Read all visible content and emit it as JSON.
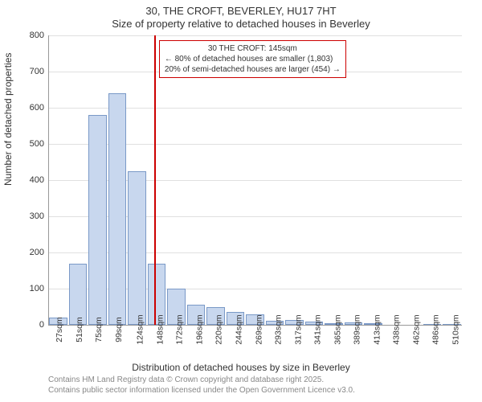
{
  "title_main": "30, THE CROFT, BEVERLEY, HU17 7HT",
  "title_sub": "Size of property relative to detached houses in Beverley",
  "y_axis_label": "Number of detached properties",
  "x_axis_label": "Distribution of detached houses by size in Beverley",
  "chart": {
    "type": "histogram",
    "background_color": "#ffffff",
    "bar_fill": "#c8d7ee",
    "bar_border": "#7a99c7",
    "grid_color": "#e0e0e0",
    "axis_color": "#999999",
    "marker_color": "#cc0000",
    "marker_x_value": 145,
    "ylim": [
      0,
      800
    ],
    "ytick_step": 100,
    "x_categories": [
      "27sqm",
      "51sqm",
      "75sqm",
      "99sqm",
      "124sqm",
      "148sqm",
      "172sqm",
      "196sqm",
      "220sqm",
      "244sqm",
      "269sqm",
      "293sqm",
      "317sqm",
      "341sqm",
      "365sqm",
      "389sqm",
      "413sqm",
      "438sqm",
      "462sqm",
      "486sqm",
      "510sqm"
    ],
    "bar_values": [
      20,
      170,
      580,
      640,
      425,
      170,
      100,
      55,
      50,
      35,
      30,
      12,
      14,
      10,
      5,
      6,
      4,
      0,
      0,
      3,
      3
    ],
    "title_fontsize": 13,
    "axis_label_fontsize": 12,
    "tick_fontsize": 11
  },
  "annotation": {
    "line1": "30 THE CROFT: 145sqm",
    "line2": "← 80% of detached houses are smaller (1,803)",
    "line3": "20% of semi-detached houses are larger (454) →",
    "border_color": "#cc0000",
    "fontsize": 10
  },
  "credits": {
    "line1": "Contains HM Land Registry data © Crown copyright and database right 2025.",
    "line2": "Contains public sector information licensed under the Open Government Licence v3.0.",
    "color": "#888888",
    "fontsize": 10
  }
}
